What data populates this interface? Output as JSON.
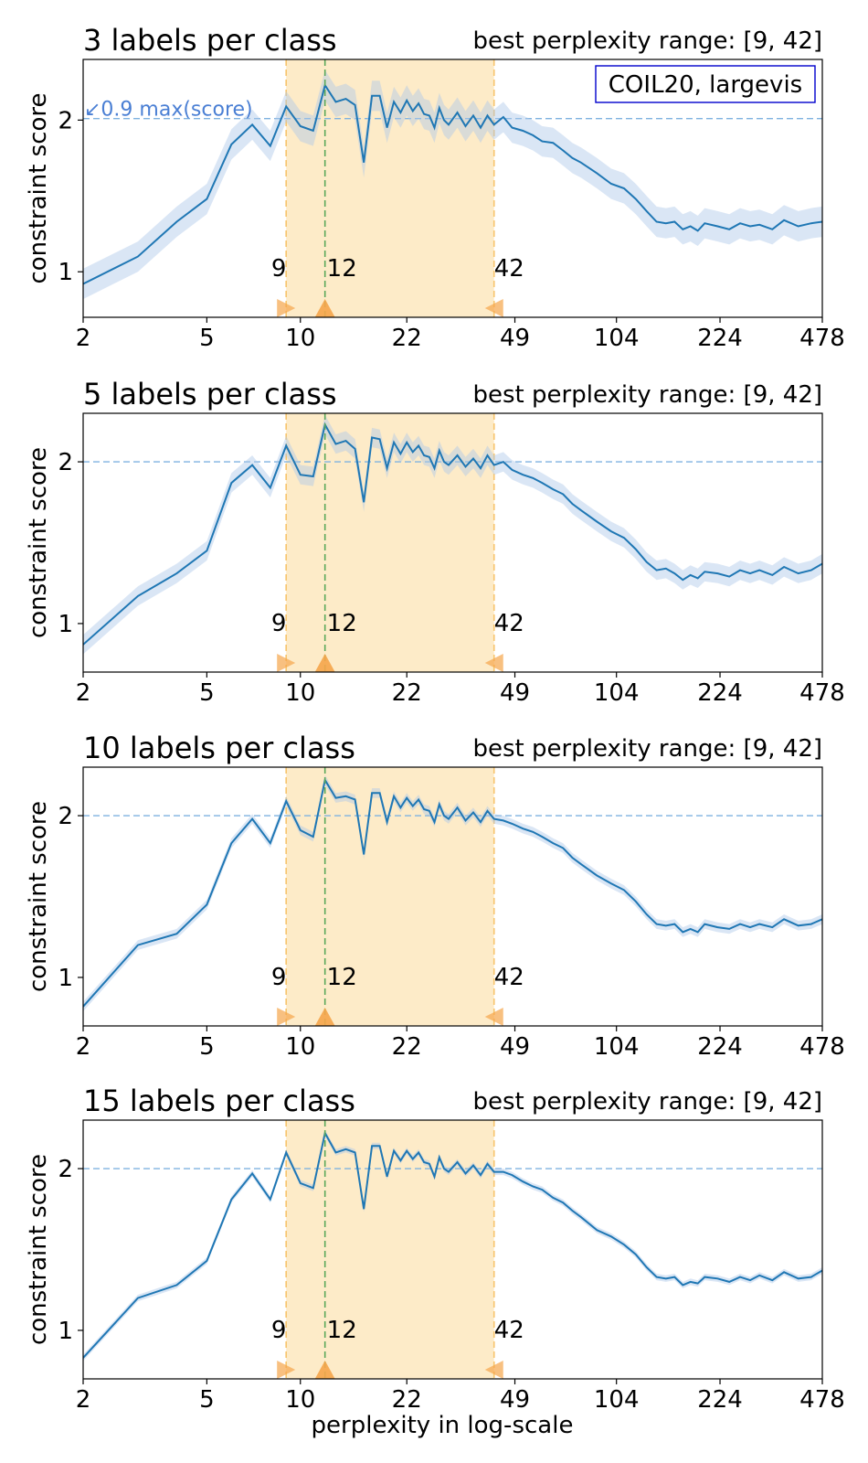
{
  "figure": {
    "xlabel": "perplexity in log-scale",
    "ylabel": "constraint score",
    "dataset_label": "COIL20, largevis",
    "threshold_annotation": "↙0.9 max(score)"
  },
  "colors": {
    "line": "#1f77b4",
    "band": "#aec7e8",
    "range_fill": "#fdebc8",
    "range_edge": "#f7c46c",
    "best_line": "#5aa85a",
    "marker": "#f5a54a",
    "threshold": "#7fb2e0",
    "annotation": "#4a7fd4",
    "legend_border": "#0000cc"
  },
  "chart_data": [
    {
      "type": "line",
      "title": "3 labels per class",
      "range_label": "best perplexity range: [9, 42]",
      "xscale": "log",
      "xlim": [
        2,
        478
      ],
      "ylim": [
        0.7,
        2.4
      ],
      "xticks": [
        2,
        5,
        10,
        22,
        49,
        104,
        224,
        478
      ],
      "yticks": [
        1,
        2
      ],
      "threshold": 2.01,
      "best_range": [
        9,
        42
      ],
      "best_perplexity": 12,
      "range_tick_labels": [
        "9",
        "12",
        "42"
      ],
      "band_width": 0.1,
      "series": [
        {
          "x": [
            2,
            3,
            4,
            5,
            6,
            7,
            8,
            9,
            10,
            11,
            12,
            13,
            14,
            15,
            16,
            17,
            18,
            19,
            20,
            21,
            22,
            23,
            24,
            25,
            26,
            27,
            28,
            29,
            30,
            32,
            34,
            36,
            38,
            40,
            42,
            45,
            48,
            52,
            56,
            60,
            65,
            70,
            75,
            80,
            90,
            100,
            110,
            120,
            130,
            140,
            150,
            160,
            170,
            180,
            190,
            200,
            220,
            240,
            260,
            280,
            300,
            330,
            360,
            400,
            440,
            478
          ],
          "y": [
            0.92,
            1.1,
            1.33,
            1.48,
            1.84,
            1.97,
            1.83,
            2.09,
            1.96,
            1.93,
            2.23,
            2.12,
            2.14,
            2.1,
            1.72,
            2.16,
            2.16,
            1.95,
            2.12,
            2.05,
            2.13,
            2.06,
            2.11,
            2.04,
            2.03,
            1.95,
            2.08,
            2.0,
            1.97,
            2.05,
            1.96,
            2.03,
            1.95,
            2.03,
            1.97,
            2.02,
            1.95,
            1.93,
            1.9,
            1.86,
            1.85,
            1.8,
            1.75,
            1.72,
            1.65,
            1.58,
            1.55,
            1.48,
            1.4,
            1.33,
            1.32,
            1.33,
            1.28,
            1.3,
            1.27,
            1.32,
            1.3,
            1.28,
            1.32,
            1.3,
            1.31,
            1.28,
            1.34,
            1.3,
            1.32,
            1.33
          ]
        }
      ]
    },
    {
      "type": "line",
      "title": "5 labels per class",
      "range_label": "best perplexity range: [9, 42]",
      "xscale": "log",
      "xlim": [
        2,
        478
      ],
      "ylim": [
        0.7,
        2.3
      ],
      "xticks": [
        2,
        5,
        10,
        22,
        49,
        104,
        224,
        478
      ],
      "yticks": [
        1,
        2
      ],
      "threshold": 2.0,
      "best_range": [
        9,
        42
      ],
      "best_perplexity": 12,
      "range_tick_labels": [
        "9",
        "12",
        "42"
      ],
      "band_width": 0.06,
      "series": [
        {
          "x": [
            2,
            3,
            4,
            5,
            6,
            7,
            8,
            9,
            10,
            11,
            12,
            13,
            14,
            15,
            16,
            17,
            18,
            19,
            20,
            21,
            22,
            23,
            24,
            25,
            26,
            27,
            28,
            29,
            30,
            32,
            34,
            36,
            38,
            40,
            42,
            45,
            48,
            52,
            56,
            60,
            65,
            70,
            75,
            80,
            90,
            100,
            110,
            120,
            130,
            140,
            150,
            160,
            170,
            180,
            190,
            200,
            220,
            240,
            260,
            280,
            300,
            330,
            360,
            400,
            440,
            478
          ],
          "y": [
            0.87,
            1.17,
            1.31,
            1.45,
            1.87,
            1.98,
            1.84,
            2.1,
            1.92,
            1.91,
            2.23,
            2.11,
            2.13,
            2.08,
            1.75,
            2.15,
            2.14,
            1.96,
            2.12,
            2.05,
            2.12,
            2.06,
            2.1,
            2.04,
            2.03,
            1.96,
            2.07,
            2.0,
            1.98,
            2.04,
            1.97,
            2.02,
            1.96,
            2.04,
            1.98,
            2.0,
            1.95,
            1.92,
            1.9,
            1.87,
            1.83,
            1.8,
            1.74,
            1.7,
            1.63,
            1.57,
            1.53,
            1.46,
            1.38,
            1.33,
            1.34,
            1.31,
            1.27,
            1.3,
            1.28,
            1.32,
            1.31,
            1.29,
            1.33,
            1.31,
            1.33,
            1.3,
            1.35,
            1.31,
            1.33,
            1.37
          ]
        }
      ]
    },
    {
      "type": "line",
      "title": "10 labels per class",
      "range_label": "best perplexity range: [9, 42]",
      "xscale": "log",
      "xlim": [
        2,
        478
      ],
      "ylim": [
        0.7,
        2.3
      ],
      "xticks": [
        2,
        5,
        10,
        22,
        49,
        104,
        224,
        478
      ],
      "yticks": [
        1,
        2
      ],
      "threshold": 2.0,
      "best_range": [
        9,
        42
      ],
      "best_perplexity": 12,
      "range_tick_labels": [
        "9",
        "12",
        "42"
      ],
      "band_width": 0.03,
      "series": [
        {
          "x": [
            2,
            3,
            4,
            5,
            6,
            7,
            8,
            9,
            10,
            11,
            12,
            13,
            14,
            15,
            16,
            17,
            18,
            19,
            20,
            21,
            22,
            23,
            24,
            25,
            26,
            27,
            28,
            29,
            30,
            32,
            34,
            36,
            38,
            40,
            42,
            45,
            48,
            52,
            56,
            60,
            65,
            70,
            75,
            80,
            90,
            100,
            110,
            120,
            130,
            140,
            150,
            160,
            170,
            180,
            190,
            200,
            220,
            240,
            260,
            280,
            300,
            330,
            360,
            400,
            440,
            478
          ],
          "y": [
            0.82,
            1.2,
            1.27,
            1.45,
            1.83,
            1.98,
            1.83,
            2.09,
            1.91,
            1.87,
            2.22,
            2.11,
            2.12,
            2.1,
            1.76,
            2.14,
            2.14,
            1.96,
            2.12,
            2.05,
            2.11,
            2.06,
            2.1,
            2.04,
            2.03,
            1.96,
            2.07,
            2.0,
            1.98,
            2.05,
            1.97,
            2.02,
            1.96,
            2.03,
            1.98,
            1.97,
            1.95,
            1.92,
            1.9,
            1.87,
            1.83,
            1.8,
            1.74,
            1.7,
            1.63,
            1.58,
            1.54,
            1.47,
            1.39,
            1.33,
            1.32,
            1.33,
            1.28,
            1.3,
            1.28,
            1.33,
            1.31,
            1.3,
            1.33,
            1.31,
            1.33,
            1.31,
            1.36,
            1.32,
            1.33,
            1.36
          ]
        }
      ]
    },
    {
      "type": "line",
      "title": "15 labels per class",
      "range_label": "best perplexity range: [9, 42]",
      "xscale": "log",
      "xlim": [
        2,
        478
      ],
      "ylim": [
        0.7,
        2.3
      ],
      "xticks": [
        2,
        5,
        10,
        22,
        49,
        104,
        224,
        478
      ],
      "yticks": [
        1,
        2
      ],
      "threshold": 2.0,
      "best_range": [
        9,
        42
      ],
      "best_perplexity": 12,
      "range_tick_labels": [
        "9",
        "12",
        "42"
      ],
      "band_width": 0.02,
      "series": [
        {
          "x": [
            2,
            3,
            4,
            5,
            6,
            7,
            8,
            9,
            10,
            11,
            12,
            13,
            14,
            15,
            16,
            17,
            18,
            19,
            20,
            21,
            22,
            23,
            24,
            25,
            26,
            27,
            28,
            29,
            30,
            32,
            34,
            36,
            38,
            40,
            42,
            45,
            48,
            52,
            56,
            60,
            65,
            70,
            75,
            80,
            90,
            100,
            110,
            120,
            130,
            140,
            150,
            160,
            170,
            180,
            190,
            200,
            220,
            240,
            260,
            280,
            300,
            330,
            360,
            400,
            440,
            478
          ],
          "y": [
            0.83,
            1.2,
            1.28,
            1.43,
            1.81,
            1.97,
            1.81,
            2.1,
            1.91,
            1.88,
            2.22,
            2.1,
            2.12,
            2.1,
            1.75,
            2.14,
            2.14,
            1.95,
            2.11,
            2.05,
            2.11,
            2.06,
            2.1,
            2.04,
            2.03,
            1.95,
            2.07,
            2.0,
            1.98,
            2.04,
            1.97,
            2.02,
            1.96,
            2.03,
            1.98,
            1.98,
            1.96,
            1.92,
            1.89,
            1.87,
            1.82,
            1.79,
            1.74,
            1.7,
            1.62,
            1.58,
            1.53,
            1.47,
            1.39,
            1.33,
            1.32,
            1.33,
            1.28,
            1.3,
            1.29,
            1.33,
            1.32,
            1.3,
            1.33,
            1.31,
            1.34,
            1.31,
            1.36,
            1.32,
            1.33,
            1.37
          ]
        }
      ]
    }
  ]
}
